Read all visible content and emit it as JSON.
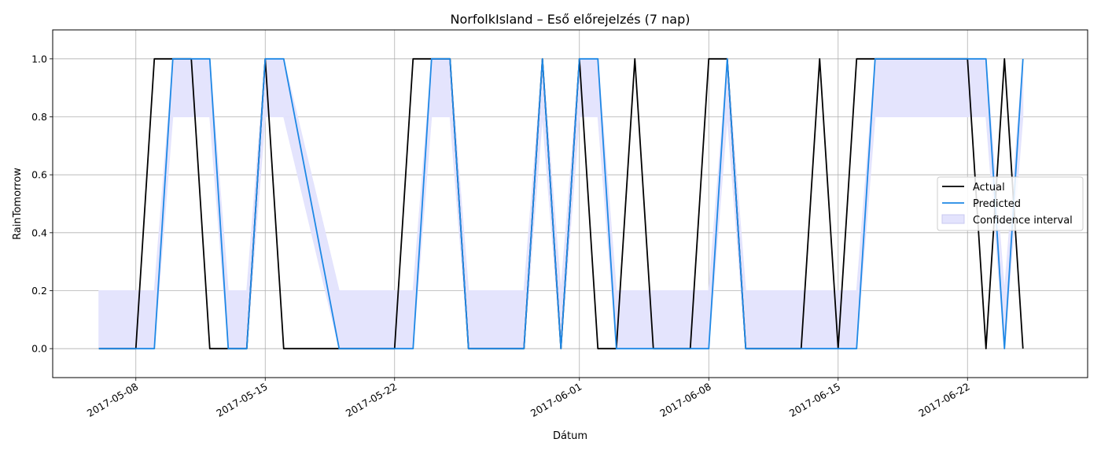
{
  "chart_data": {
    "type": "line",
    "title": "NorfolkIsland – Eső előrejelzés (7 nap)",
    "xlabel": "Dátum",
    "ylabel": "RainTomorrow",
    "x_dates": [
      "2017-05-06",
      "2017-05-07",
      "2017-05-08",
      "2017-05-09",
      "2017-05-10",
      "2017-05-11",
      "2017-05-12",
      "2017-05-13",
      "2017-05-14",
      "2017-05-15",
      "2017-05-16",
      "2017-05-19",
      "2017-05-22",
      "2017-05-23",
      "2017-05-24",
      "2017-05-25",
      "2017-05-26",
      "2017-05-29",
      "2017-05-30",
      "2017-05-31",
      "2017-06-01",
      "2017-06-02",
      "2017-06-03",
      "2017-06-04",
      "2017-06-05",
      "2017-06-07",
      "2017-06-08",
      "2017-06-09",
      "2017-06-10",
      "2017-06-13",
      "2017-06-14",
      "2017-06-15",
      "2017-06-16",
      "2017-06-17",
      "2017-06-22",
      "2017-06-23",
      "2017-06-24",
      "2017-06-25"
    ],
    "series": [
      {
        "name": "Actual",
        "color": "#000000",
        "values": [
          0,
          0,
          0,
          1,
          1,
          1,
          0,
          0,
          0,
          1,
          0,
          0,
          0,
          1,
          1,
          1,
          0,
          0,
          1,
          0,
          1,
          0,
          0,
          1,
          0,
          0,
          1,
          1,
          0,
          0,
          1,
          0,
          1,
          1,
          1,
          0,
          1,
          0
        ]
      },
      {
        "name": "Predicted",
        "color": "#1e88e5",
        "values": [
          0,
          0,
          0,
          0,
          1,
          1,
          1,
          0,
          0,
          1,
          1,
          0,
          0,
          0,
          1,
          1,
          0,
          0,
          1,
          0,
          1,
          1,
          0,
          0,
          0,
          0,
          0,
          1,
          0,
          0,
          0,
          0,
          0,
          1,
          1,
          1,
          0,
          1
        ]
      }
    ],
    "confidence_interval": {
      "name": "Confidence interval",
      "color": "#e3e3fd",
      "lower": [
        0,
        0,
        0,
        0,
        0.8,
        0.8,
        0.8,
        0,
        0,
        0.8,
        0.8,
        0,
        0,
        0,
        0.8,
        0.8,
        0,
        0,
        0.8,
        0,
        0.8,
        0.8,
        0,
        0,
        0,
        0,
        0,
        0.8,
        0,
        0,
        0,
        0,
        0,
        0.8,
        0.8,
        0.8,
        0,
        0.8
      ],
      "upper": [
        0.2,
        0.2,
        0.2,
        0.2,
        1,
        1,
        1,
        0.2,
        0.2,
        1,
        1,
        0.2,
        0.2,
        0.2,
        1,
        1,
        0.2,
        0.2,
        1,
        0.2,
        1,
        1,
        0.2,
        0.2,
        0.2,
        0.2,
        0.2,
        1,
        0.2,
        0.2,
        0.2,
        0.2,
        0.2,
        1,
        1,
        1,
        0.2,
        1
      ]
    },
    "xlim": [
      "2017-05-03.5",
      "2017-06-28.5"
    ],
    "ylim": [
      -0.1,
      1.1
    ],
    "x_ticks": [
      "2017-05-08",
      "2017-05-15",
      "2017-05-22",
      "2017-06-01",
      "2017-06-08",
      "2017-06-15",
      "2017-06-22"
    ],
    "y_ticks": [
      0.0,
      0.2,
      0.4,
      0.6,
      0.8,
      1.0
    ],
    "y_tick_labels": [
      "0.0",
      "0.2",
      "0.4",
      "0.6",
      "0.8",
      "1.0"
    ],
    "grid": true,
    "legend_position": "center-right"
  }
}
